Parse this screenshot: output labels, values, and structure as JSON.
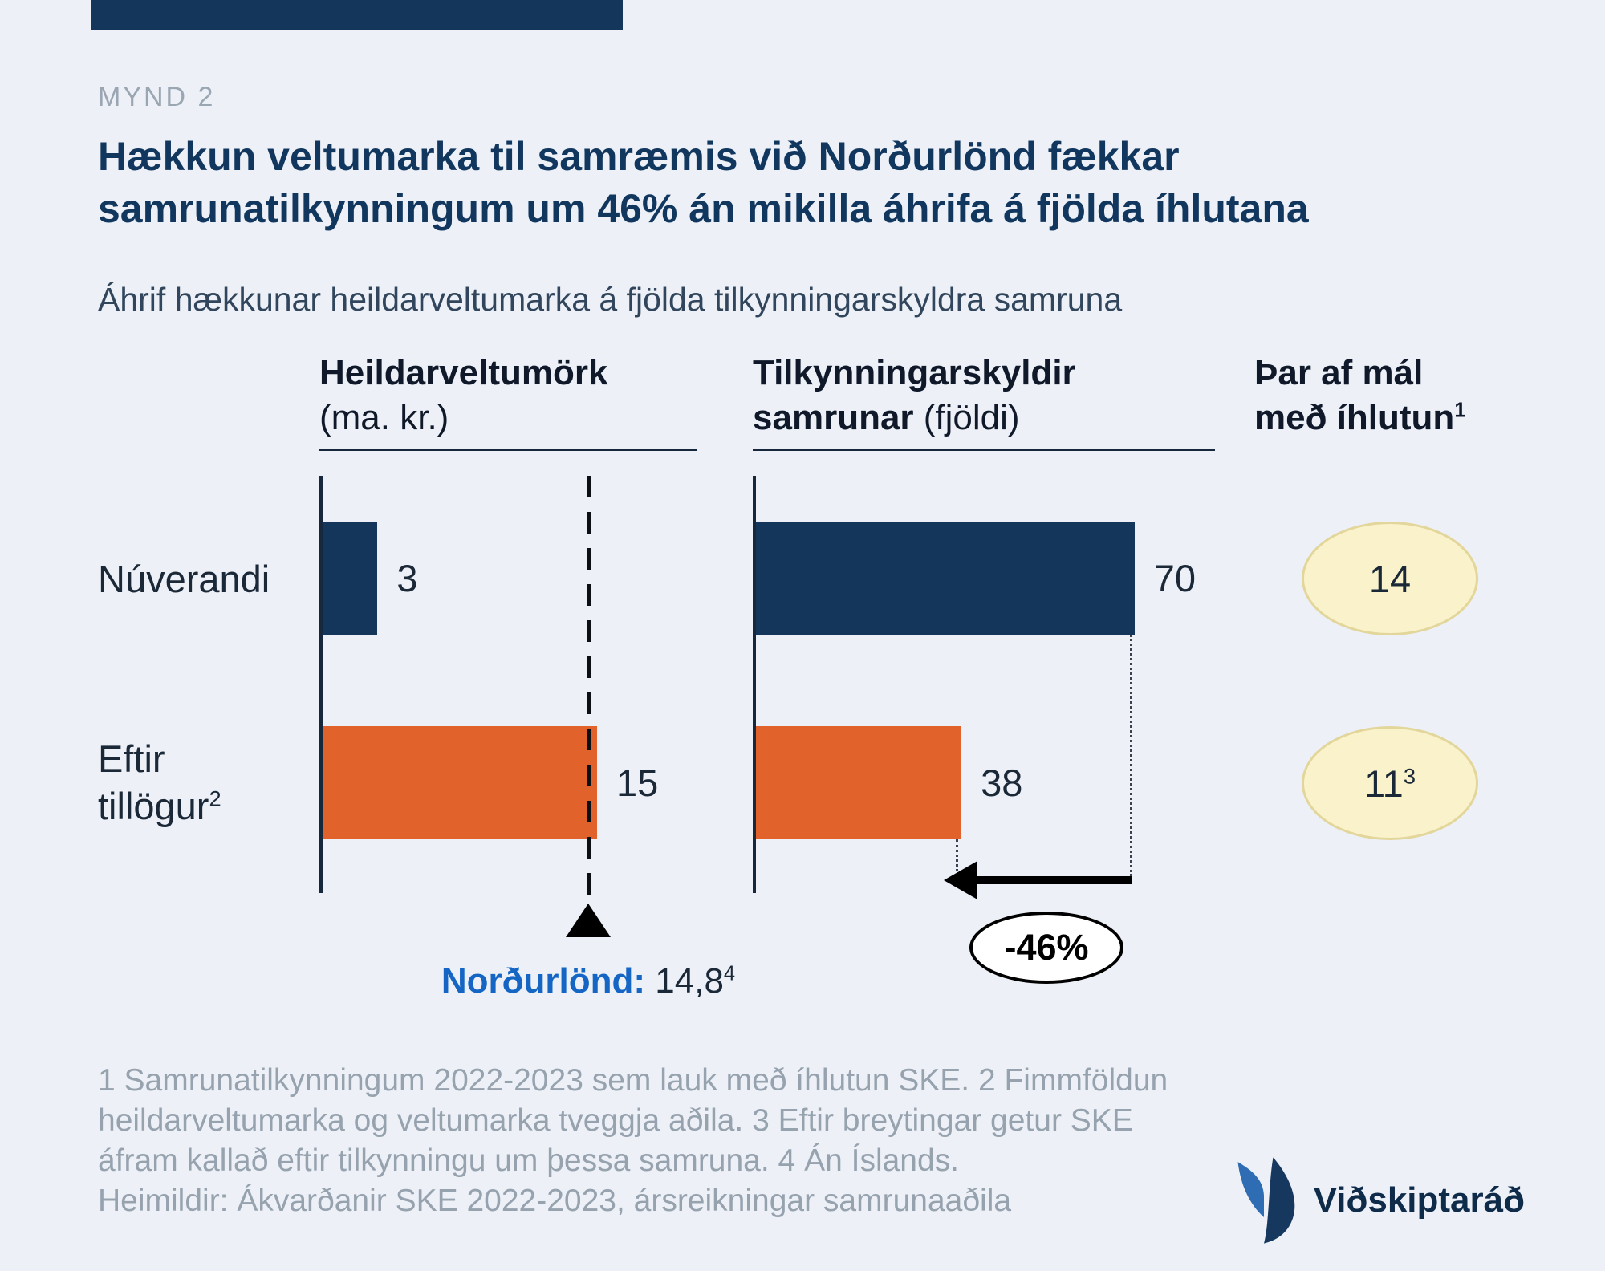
{
  "page": {
    "background": "#EDF1F7",
    "navy": "#14365A",
    "orange": "#E2622B"
  },
  "header": {
    "figure_label": "MYND 2",
    "title_line1": "Hækkun veltumarka til samræmis við Norðurlönd fækkar",
    "title_line2": "samrunatilkynningum um 46% án mikilla áhrifa á fjölda íhlutana",
    "subtitle": "Áhrif hækkunar heildarveltumarka á fjölda tilkynningarskyldra samruna"
  },
  "columns": {
    "c1": {
      "bold": "Heildarveltumörk",
      "normal": "(ma. kr.)"
    },
    "c2": {
      "bold1": "Tilkynningarskyldir",
      "bold2": "samrunar",
      "normal": "(fjöldi)"
    },
    "c3": {
      "line1": "Þar af mál",
      "line2": "með íhlutun",
      "sup": "1"
    }
  },
  "rows": {
    "r1": {
      "label": "Núverandi"
    },
    "r2": {
      "line1": "Eftir",
      "line2": "tillögur",
      "sup": "2"
    }
  },
  "chart_data": {
    "type": "bar",
    "orientation": "horizontal",
    "categories": [
      "Núverandi",
      "Eftir tillögur"
    ],
    "series": [
      {
        "name": "Heildarveltumörk (ma. kr.)",
        "values": [
          3,
          15
        ],
        "reference_line": {
          "label": "Norðurlönd",
          "value": 14.8
        }
      },
      {
        "name": "Tilkynningarskyldir samrunar (fjöldi)",
        "values": [
          70,
          38
        ],
        "change_pct": "-46%"
      },
      {
        "name": "Þar af mál með íhlutun",
        "values": [
          14,
          11
        ]
      }
    ],
    "bar_colors": {
      "Núverandi": "#14365A",
      "Eftir tillögur": "#E2622B"
    },
    "grid": false,
    "legend_position": "none"
  },
  "annotations": {
    "reference": {
      "label": "Norðurlönd:",
      "value": "14,8",
      "sup": "4"
    },
    "change_badge": "-46%",
    "circles": [
      {
        "value": "14",
        "sup": ""
      },
      {
        "value": "11",
        "sup": "3"
      }
    ],
    "circle_fill": "#F9F2CB",
    "circle_border": "#E3D69B"
  },
  "footnotes": {
    "lines": [
      "1 Samrunatilkynningum 2022-2023 sem lauk með íhlutun SKE. 2 Fimmföldun",
      "heildarveltumarka og veltumarka tveggja aðila. 3 Eftir breytingar getur SKE",
      "áfram kallað eftir tilkynningu um þessa samruna. 4 Án Íslands.",
      "Heimildir: Ákvarðanir SKE 2022-2023, ársreikningar samrunaaðila"
    ]
  },
  "logo": {
    "text": "Viðskiptaráð"
  }
}
